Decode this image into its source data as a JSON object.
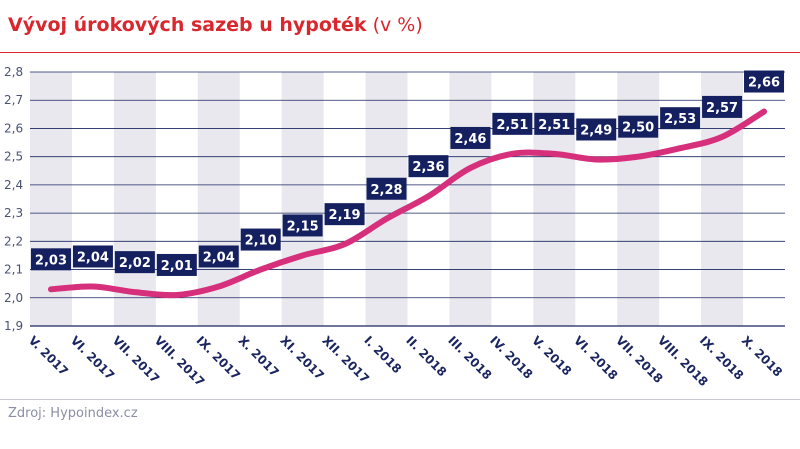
{
  "header": {
    "title": "Vývoj úrokových sazeb u hypoték",
    "unit": "(v %)"
  },
  "footer": {
    "source": "Zdroj: Hypoindex.cz"
  },
  "colors": {
    "accent": "#d9272e",
    "line": "#d6307c",
    "label_bg": "#14205f",
    "band": "#e8e8ee",
    "grid": "#1b2660"
  },
  "chart_data": {
    "type": "line",
    "title": "Vývoj úrokových sazeb u hypoték",
    "xlabel": "",
    "ylabel": "",
    "ylim": [
      1.9,
      2.8
    ],
    "yticks": [
      "1,9",
      "2,0",
      "2,1",
      "2,2",
      "2,3",
      "2,4",
      "2,5",
      "2,6",
      "2,7",
      "2,8"
    ],
    "grid": true,
    "legend": "none",
    "categories": [
      "V. 2017",
      "VI. 2017",
      "VII. 2017",
      "VIII. 2017",
      "IX. 2017",
      "X. 2017",
      "XI. 2017",
      "XII. 2017",
      "I. 2018",
      "II. 2018",
      "III. 2018",
      "IV. 2018",
      "V. 2018",
      "VI. 2018",
      "VII. 2018",
      "VIII. 2018",
      "IX. 2018",
      "X. 2018"
    ],
    "series": [
      {
        "values": [
          2.03,
          2.04,
          2.02,
          2.01,
          2.04,
          2.1,
          2.15,
          2.19,
          2.28,
          2.36,
          2.46,
          2.51,
          2.51,
          2.49,
          2.5,
          2.53,
          2.57,
          2.66
        ],
        "labels": [
          "2,03",
          "2,04",
          "2,02",
          "2,01",
          "2,04",
          "2,10",
          "2,15",
          "2,19",
          "2,28",
          "2,36",
          "2,46",
          "2,51",
          "2,51",
          "2,49",
          "2,50",
          "2,53",
          "2,57",
          "2,66"
        ]
      }
    ]
  }
}
